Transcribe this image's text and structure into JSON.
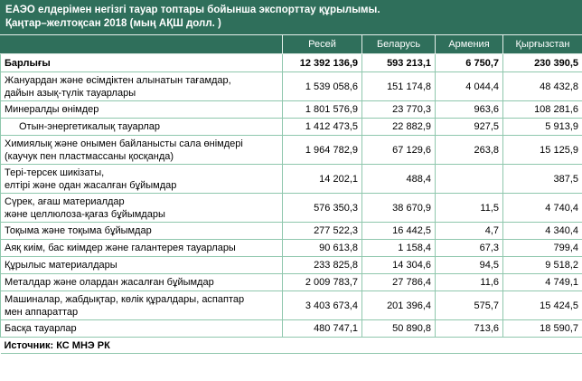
{
  "title_line1": "ЕАЭО елдерімен негізгі тауар топтары бойынша экспорттау құрылымы.",
  "title_line2": "Қаңтар–желтоқсан 2018 (мың АҚШ долл. )",
  "columns": [
    "Ресей",
    "Беларусь",
    "Армения",
    "Қырғызстан"
  ],
  "rows": [
    {
      "label": "Барлығы",
      "values": [
        "12 392 136,9",
        "593 213,1",
        "6 750,7",
        "230 390,5"
      ]
    },
    {
      "label": "Жануардан және өсімдіктен алынатын тағамдар, дайын азық-түлік тауарлары",
      "values": [
        "1 539 058,6",
        "151 174,8",
        "4 044,4",
        "48 432,8"
      ]
    },
    {
      "label": "Минералды өнімдер",
      "values": [
        "1 801 576,9",
        "23 770,3",
        "963,6",
        "108 281,6"
      ]
    },
    {
      "label": "Отын-энергетикалық тауарлар",
      "values": [
        "1 412 473,5",
        "22 882,9",
        "927,5",
        "5 913,9"
      ]
    },
    {
      "label": "Химиялық және онымен байланысты сала өнімдері (каучук пен пластмассаны қосқанда)",
      "values": [
        "1 964 782,9",
        "67 129,6",
        "263,8",
        "15 125,9"
      ]
    },
    {
      "label": "Тері-терсек шикізаты, елтірі және одан жасалған бұйымдар",
      "values": [
        "14 202,1",
        "488,4",
        "",
        "387,5"
      ]
    },
    {
      "label": "Сүрек, ағаш материалдар және целлюлоза-қағаз бұйымдары",
      "values": [
        "576 350,3",
        "38 670,9",
        "11,5",
        "4 740,4"
      ]
    },
    {
      "label": "Тоқыма және тоқыма бұйымдар",
      "values": [
        "277 522,3",
        "16 442,5",
        "4,7",
        "4 340,4"
      ]
    },
    {
      "label": "Аяқ киім, бас киімдер және галантерея тауарлары",
      "values": [
        "90 613,8",
        "1 158,4",
        "67,3",
        "799,4"
      ]
    },
    {
      "label": "Құрылыс материалдары",
      "values": [
        "233 825,8",
        "14 304,6",
        "94,5",
        "9 518,2"
      ]
    },
    {
      "label": "Металдар және олардан жасалған бұйымдар",
      "values": [
        "2 009 783,7",
        "27 786,4",
        "11,6",
        "4 749,1"
      ]
    },
    {
      "label": "Машиналар, жабдықтар, көлік құралдары, аспаптар мен аппараттар",
      "values": [
        "3 403 673,4",
        "201 396,4",
        "575,7",
        "15 424,5"
      ]
    },
    {
      "label": "Басқа тауарлар",
      "values": [
        "480 747,1",
        "50 890,8",
        "713,6",
        "18 590,7"
      ]
    }
  ],
  "label_lines": {
    "r1a": "Жануардан және өсімдіктен алынатын тағамдар,",
    "r1b": "дайын азық-түлік тауарлары",
    "r4a": "Химиялық және онымен байланысты сала өнімдері",
    "r4b": "(каучук пен пластмассаны қосқанда)",
    "r5a": "Тері-терсек шикізаты,",
    "r5b": "елтірі және одан жасалған бұйымдар",
    "r6a": "Сүрек, ағаш материалдар",
    "r6b": "және целлюлоза-қағаз бұйымдары",
    "r11a": "Машиналар, жабдықтар, көлік құралдары, аспаптар",
    "r11b": "мен аппараттар"
  },
  "source": "Источник: КС МНЭ РК",
  "colors": {
    "header_bg": "#2f6f5b",
    "grid": "#8fc7ad"
  }
}
